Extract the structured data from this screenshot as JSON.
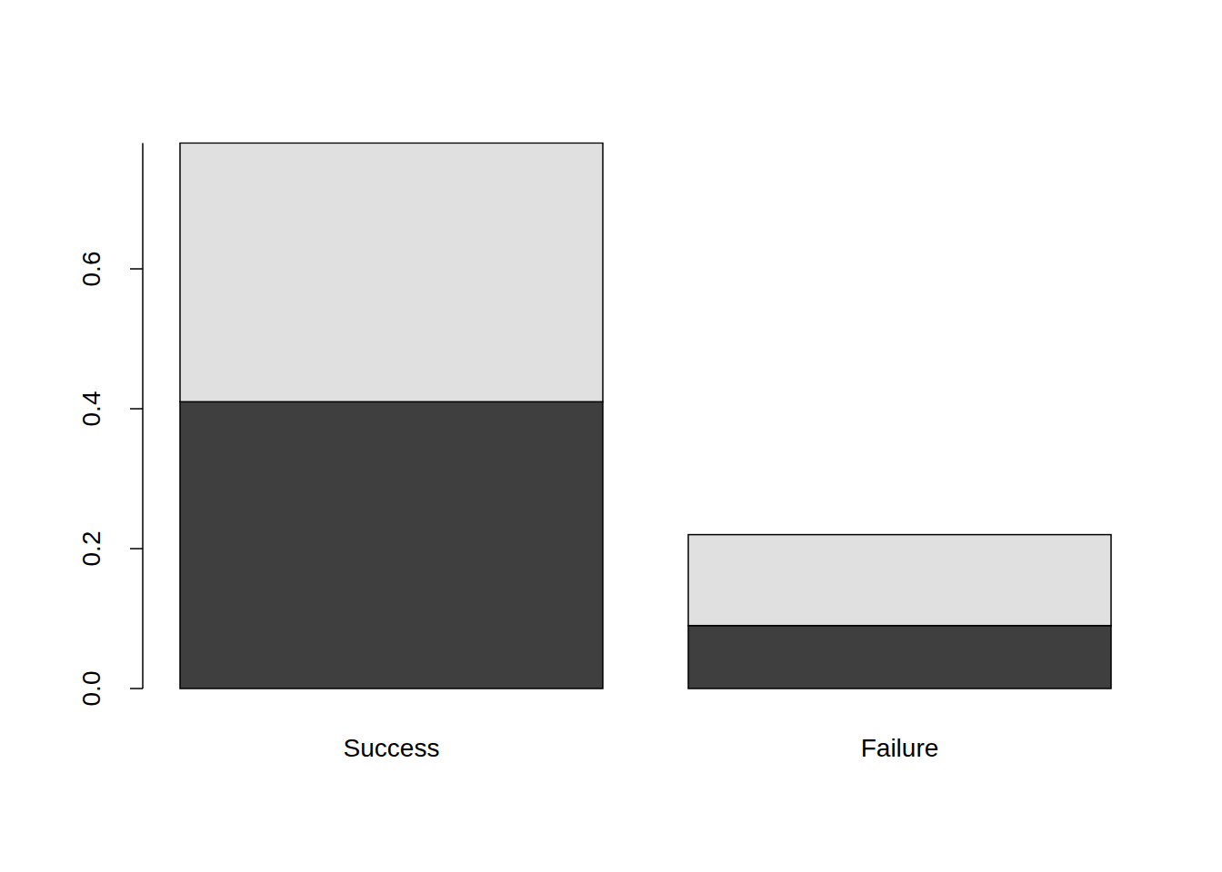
{
  "chart_data": {
    "type": "bar",
    "stacked": true,
    "categories": [
      "Success",
      "Failure"
    ],
    "series": [
      {
        "color": "#3f3f3f",
        "values": [
          0.41,
          0.09
        ]
      },
      {
        "color": "#e0e0e0",
        "values": [
          0.37,
          0.13
        ]
      }
    ],
    "ylim": [
      0,
      0.78
    ],
    "yticks": [
      {
        "value": 0,
        "label": "0.0"
      },
      {
        "value": 0.2,
        "label": "0.2"
      },
      {
        "value": 0.4,
        "label": "0.4"
      },
      {
        "value": 0.6,
        "label": "0.6"
      }
    ]
  }
}
